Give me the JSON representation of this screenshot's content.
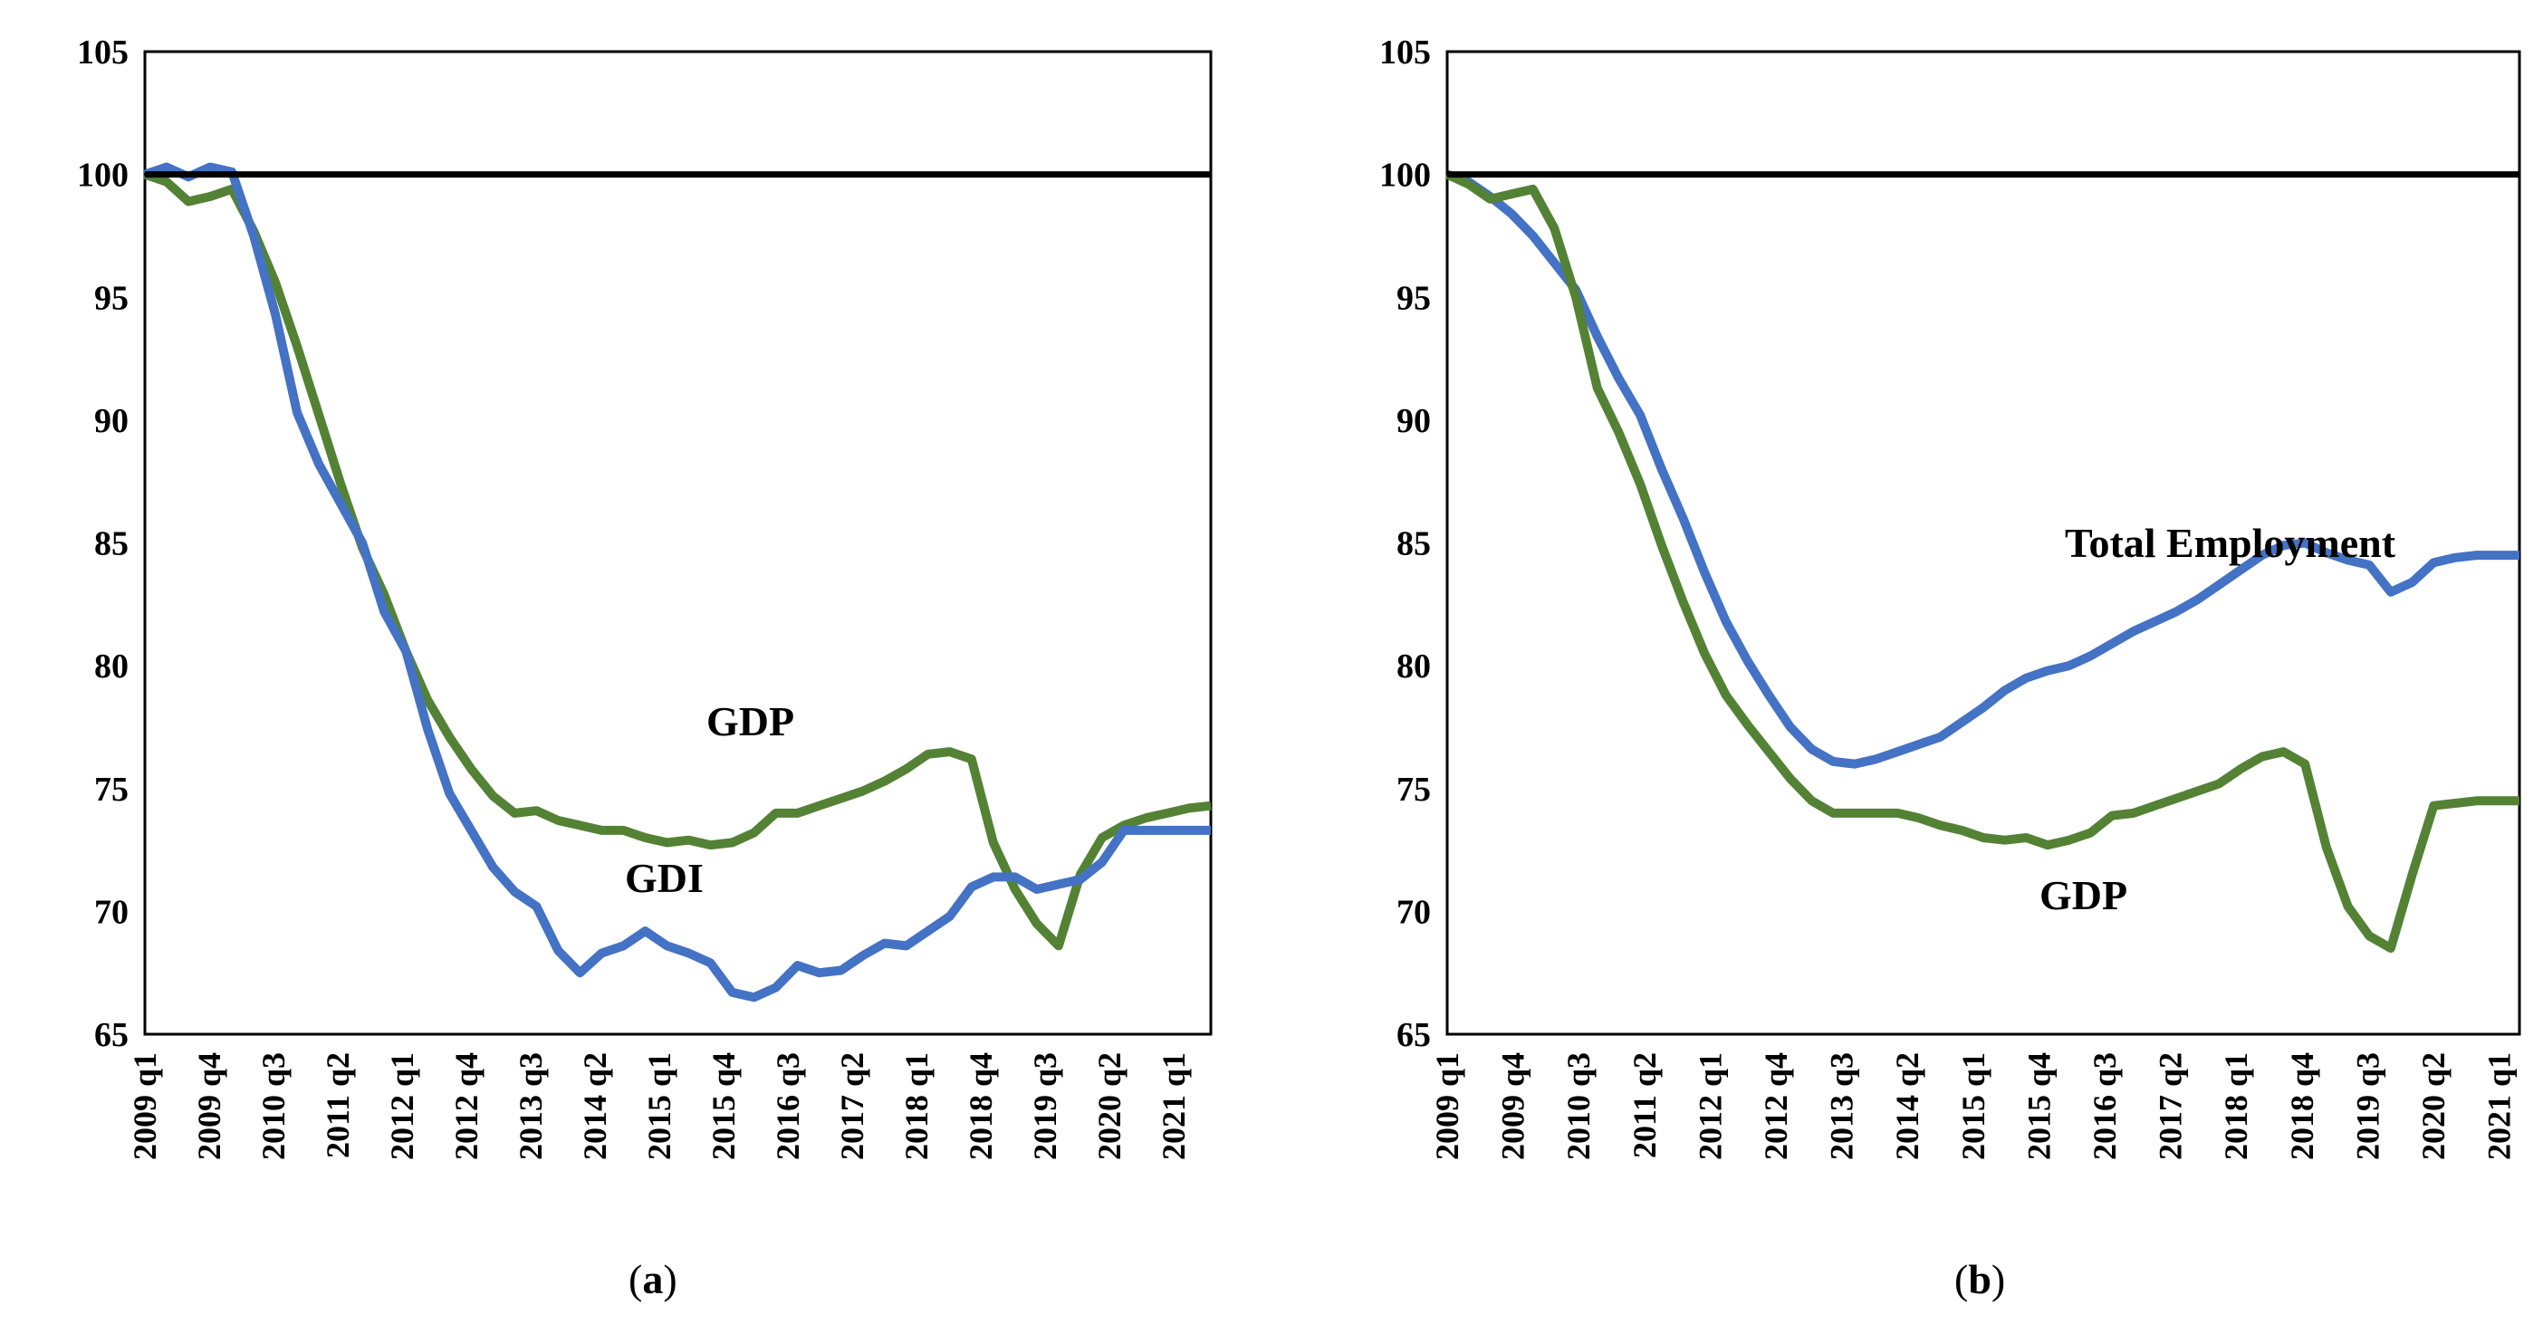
{
  "chart_data": [
    {
      "type": "line",
      "panel": "a",
      "caption_open": "(",
      "caption_letter": "a",
      "caption_close": ")",
      "ylim": [
        65,
        105
      ],
      "yticks": [
        65,
        70,
        75,
        80,
        85,
        90,
        95,
        100,
        105
      ],
      "reference_line": 100,
      "x_tick_labels": [
        "2009 q1",
        "2009 q4",
        "2010 q3",
        "2011 q2",
        "2012 q1",
        "2012 q4",
        "2013 q3",
        "2014 q2",
        "2015 q1",
        "2015 q4",
        "2016 q3",
        "2017 q2",
        "2018 q1",
        "2018 q4",
        "2019 q3",
        "2020 q2",
        "2021 q1"
      ],
      "n_points": 50,
      "series": [
        {
          "name": "GDP",
          "label": "GDP",
          "color": "#548235",
          "values": [
            100.0,
            99.7,
            98.9,
            99.1,
            99.4,
            97.7,
            95.6,
            93.0,
            90.2,
            87.4,
            84.8,
            82.9,
            80.6,
            78.6,
            77.1,
            75.8,
            74.7,
            74.0,
            74.1,
            73.7,
            73.5,
            73.3,
            73.3,
            73.0,
            72.8,
            72.9,
            72.7,
            72.8,
            73.2,
            74.0,
            74.0,
            74.3,
            74.6,
            74.9,
            75.3,
            75.8,
            76.4,
            76.5,
            76.2,
            72.8,
            70.9,
            69.5,
            68.6,
            71.5,
            73.0,
            73.5,
            73.8,
            74.0,
            74.2,
            74.3
          ]
        },
        {
          "name": "GDI",
          "label": "GDI",
          "color": "#4472C4",
          "values": [
            100.0,
            100.3,
            99.9,
            100.3,
            100.1,
            97.5,
            94.3,
            90.3,
            88.2,
            86.6,
            85.0,
            82.2,
            80.6,
            77.4,
            74.8,
            73.3,
            71.8,
            70.8,
            70.2,
            68.4,
            67.5,
            68.3,
            68.6,
            69.2,
            68.6,
            68.3,
            67.9,
            66.7,
            66.5,
            66.9,
            67.8,
            67.5,
            67.6,
            68.2,
            68.7,
            68.6,
            69.2,
            69.8,
            71.0,
            71.4,
            71.4,
            70.9,
            71.1,
            71.3,
            72.0,
            73.3,
            73.3,
            73.3,
            73.3,
            73.3
          ]
        }
      ]
    },
    {
      "type": "line",
      "panel": "b",
      "caption_open": "(",
      "caption_letter": "b",
      "caption_close": ")",
      "ylim": [
        65,
        105
      ],
      "yticks": [
        65,
        70,
        75,
        80,
        85,
        90,
        95,
        100,
        105
      ],
      "reference_line": 100,
      "x_tick_labels": [
        "2009 q1",
        "2009 q4",
        "2010 q3",
        "2011 q2",
        "2012 q1",
        "2012 q4",
        "2013 q3",
        "2014 q2",
        "2015 q1",
        "2015 q4",
        "2016 q3",
        "2017 q2",
        "2018 q1",
        "2018 q4",
        "2019 q3",
        "2020 q2",
        "2021 q1"
      ],
      "n_points": 51,
      "series": [
        {
          "name": "Total Employment",
          "label": "Total Employment",
          "color": "#4472C4",
          "values": [
            100.0,
            99.7,
            99.1,
            98.4,
            97.5,
            96.4,
            95.3,
            93.4,
            91.7,
            90.2,
            88.0,
            86.0,
            83.8,
            81.8,
            80.2,
            78.8,
            77.5,
            76.6,
            76.1,
            76.0,
            76.2,
            76.5,
            76.8,
            77.1,
            77.7,
            78.3,
            79.0,
            79.5,
            79.8,
            80.0,
            80.4,
            80.9,
            81.4,
            81.8,
            82.2,
            82.7,
            83.3,
            83.9,
            84.5,
            84.9,
            85.0,
            84.6,
            84.3,
            84.1,
            83.0,
            83.4,
            84.2,
            84.4,
            84.5,
            84.5,
            84.5
          ]
        },
        {
          "name": "GDP",
          "label": "GDP",
          "color": "#548235",
          "values": [
            100.0,
            99.6,
            99.0,
            99.2,
            99.4,
            97.8,
            95.0,
            91.3,
            89.5,
            87.4,
            84.9,
            82.6,
            80.5,
            78.8,
            77.6,
            76.5,
            75.4,
            74.5,
            74.0,
            74.0,
            74.0,
            74.0,
            73.8,
            73.5,
            73.3,
            73.0,
            72.9,
            73.0,
            72.7,
            72.9,
            73.2,
            73.9,
            74.0,
            74.3,
            74.6,
            74.9,
            75.2,
            75.8,
            76.3,
            76.5,
            76.0,
            72.6,
            70.2,
            69.0,
            68.5,
            71.5,
            74.3,
            74.4,
            74.5,
            74.5,
            74.5
          ]
        }
      ]
    }
  ]
}
